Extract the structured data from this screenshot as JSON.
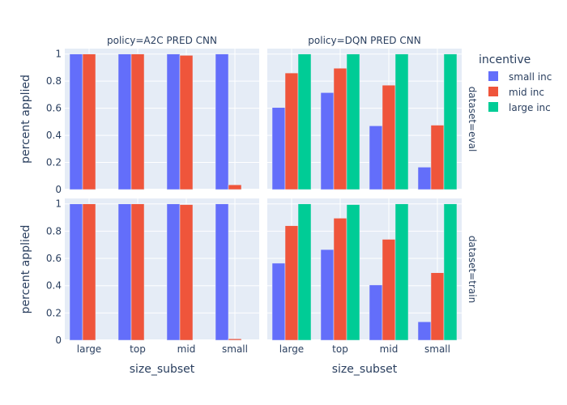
{
  "chart_data": {
    "type": "bar",
    "barmode": "group",
    "categories": [
      "large",
      "top",
      "mid",
      "small"
    ],
    "xlabel": "size_subset",
    "ylabel": "percent applied",
    "ylim": [
      0,
      1.04
    ],
    "yticks": [
      0,
      0.2,
      0.4,
      0.6,
      0.8,
      1
    ],
    "ytick_labels": [
      "0",
      "0.2",
      "0.4",
      "0.6",
      "0.8",
      "1"
    ],
    "grid": true,
    "legend": {
      "title": "incentive",
      "placement": "top-right",
      "entries": [
        "small inc",
        "mid inc",
        "large inc"
      ]
    },
    "colors": {
      "small inc": "#636efa",
      "mid inc": "#ef553b",
      "large inc": "#00cc96"
    },
    "column_facets": [
      "policy=A2C PRED CNN",
      "policy=DQN PRED CNN"
    ],
    "row_facets": [
      "dataset=eval",
      "dataset=train"
    ],
    "panels": [
      {
        "policy": "policy=A2C PRED CNN",
        "dataset": "dataset=eval",
        "series": [
          {
            "name": "small inc",
            "values": [
              1.0,
              1.0,
              1.0,
              1.0
            ]
          },
          {
            "name": "mid inc",
            "values": [
              1.0,
              1.0,
              0.99,
              0.035
            ]
          },
          {
            "name": "large inc",
            "values": [
              null,
              null,
              null,
              null
            ]
          }
        ]
      },
      {
        "policy": "policy=DQN PRED CNN",
        "dataset": "dataset=eval",
        "series": [
          {
            "name": "small inc",
            "values": [
              0.605,
              0.715,
              0.47,
              0.165
            ]
          },
          {
            "name": "mid inc",
            "values": [
              0.86,
              0.895,
              0.77,
              0.475
            ]
          },
          {
            "name": "large inc",
            "values": [
              1.0,
              1.0,
              1.0,
              1.0
            ]
          }
        ]
      },
      {
        "policy": "policy=A2C PRED CNN",
        "dataset": "dataset=train",
        "series": [
          {
            "name": "small inc",
            "values": [
              1.0,
              1.0,
              1.0,
              1.0
            ]
          },
          {
            "name": "mid inc",
            "values": [
              1.0,
              1.0,
              0.995,
              0.01
            ]
          },
          {
            "name": "large inc",
            "values": [
              null,
              null,
              null,
              null
            ]
          }
        ]
      },
      {
        "policy": "policy=DQN PRED CNN",
        "dataset": "dataset=train",
        "series": [
          {
            "name": "small inc",
            "values": [
              0.565,
              0.665,
              0.405,
              0.135
            ]
          },
          {
            "name": "mid inc",
            "values": [
              0.84,
              0.895,
              0.74,
              0.495
            ]
          },
          {
            "name": "large inc",
            "values": [
              1.0,
              0.995,
              1.0,
              1.0
            ]
          }
        ]
      }
    ]
  }
}
